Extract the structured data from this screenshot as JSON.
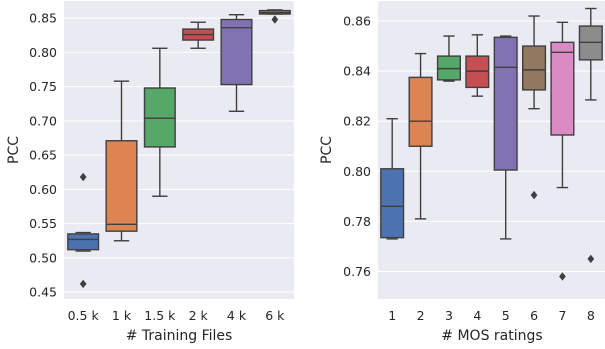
{
  "chart_data": [
    {
      "type": "box",
      "xlabel": "# Training Files",
      "ylabel": "PCC",
      "ylim": [
        0.44,
        0.875
      ],
      "yticks": [
        0.45,
        0.5,
        0.55,
        0.6,
        0.65,
        0.7,
        0.75,
        0.8,
        0.85
      ],
      "ytick_labels": [
        "0.45",
        "0.50",
        "0.55",
        "0.60",
        "0.65",
        "0.70",
        "0.75",
        "0.80",
        "0.85"
      ],
      "grid": true,
      "categories": [
        "0.5 k",
        "1 k",
        "1.5 k",
        "2 k",
        "4 k",
        "6 k"
      ],
      "boxes": [
        {
          "category": "0.5 k",
          "color": "#4c72b0",
          "whisker_low": 0.51,
          "q1": 0.512,
          "median": 0.527,
          "q3": 0.535,
          "whisker_high": 0.537,
          "outliers": [
            0.618,
            0.462
          ]
        },
        {
          "category": "1 k",
          "color": "#dd8452",
          "whisker_low": 0.525,
          "q1": 0.539,
          "median": 0.549,
          "q3": 0.671,
          "whisker_high": 0.758,
          "outliers": []
        },
        {
          "category": "1.5 k",
          "color": "#55a868",
          "whisker_low": 0.59,
          "q1": 0.662,
          "median": 0.704,
          "q3": 0.748,
          "whisker_high": 0.806,
          "outliers": []
        },
        {
          "category": "2 k",
          "color": "#c44e52",
          "whisker_low": 0.806,
          "q1": 0.818,
          "median": 0.826,
          "q3": 0.834,
          "whisker_high": 0.844,
          "outliers": []
        },
        {
          "category": "4 k",
          "color": "#8172b3",
          "whisker_low": 0.714,
          "q1": 0.753,
          "median": 0.836,
          "q3": 0.848,
          "whisker_high": 0.855,
          "outliers": []
        },
        {
          "category": "6 k",
          "color": "#937860",
          "whisker_low": 0.856,
          "q1": 0.856,
          "median": 0.858,
          "q3": 0.861,
          "whisker_high": 0.862,
          "outliers": [
            0.848
          ]
        }
      ]
    },
    {
      "type": "box",
      "xlabel": "# MOS ratings",
      "ylabel": "PCC",
      "ylim": [
        0.749,
        0.868
      ],
      "yticks": [
        0.76,
        0.78,
        0.8,
        0.82,
        0.84,
        0.86
      ],
      "ytick_labels": [
        "0.76",
        "0.78",
        "0.80",
        "0.82",
        "0.84",
        "0.86"
      ],
      "grid": true,
      "categories": [
        "1",
        "2",
        "3",
        "4",
        "5",
        "6",
        "7",
        "8"
      ],
      "boxes": [
        {
          "category": "1",
          "color": "#4c72b0",
          "whisker_low": 0.773,
          "q1": 0.7735,
          "median": 0.786,
          "q3": 0.801,
          "whisker_high": 0.821,
          "outliers": []
        },
        {
          "category": "2",
          "color": "#dd8452",
          "whisker_low": 0.781,
          "q1": 0.81,
          "median": 0.82,
          "q3": 0.8375,
          "whisker_high": 0.847,
          "outliers": []
        },
        {
          "category": "3",
          "color": "#55a868",
          "whisker_low": 0.836,
          "q1": 0.8365,
          "median": 0.841,
          "q3": 0.846,
          "whisker_high": 0.854,
          "outliers": []
        },
        {
          "category": "4",
          "color": "#c44e52",
          "whisker_low": 0.83,
          "q1": 0.8335,
          "median": 0.84,
          "q3": 0.846,
          "whisker_high": 0.8545,
          "outliers": []
        },
        {
          "category": "5",
          "color": "#8172b3",
          "whisker_low": 0.773,
          "q1": 0.8005,
          "median": 0.8415,
          "q3": 0.8535,
          "whisker_high": 0.854,
          "outliers": []
        },
        {
          "category": "6",
          "color": "#937860",
          "whisker_low": 0.825,
          "q1": 0.8325,
          "median": 0.8405,
          "q3": 0.85,
          "whisker_high": 0.862,
          "outliers": [
            0.7905
          ]
        },
        {
          "category": "7",
          "color": "#da8bc3",
          "whisker_low": 0.7935,
          "q1": 0.8145,
          "median": 0.8475,
          "q3": 0.8515,
          "whisker_high": 0.8595,
          "outliers": [
            0.758
          ]
        },
        {
          "category": "8",
          "color": "#8c8c8c",
          "whisker_low": 0.8285,
          "q1": 0.8445,
          "median": 0.8515,
          "q3": 0.858,
          "whisker_high": 0.865,
          "outliers": [
            0.765
          ]
        }
      ]
    }
  ]
}
